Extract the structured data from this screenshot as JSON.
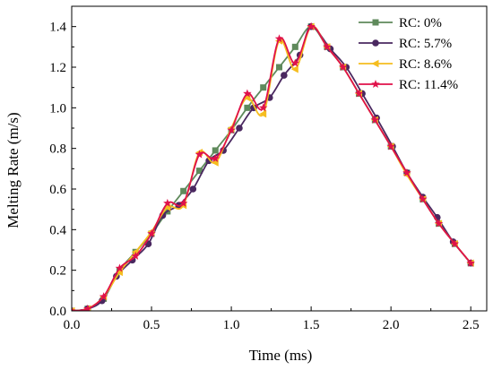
{
  "chart_data": {
    "type": "line",
    "title": "",
    "xlabel": "Time (ms)",
    "ylabel": "Melting Rate (m/s)",
    "xlim": [
      0,
      2.6
    ],
    "ylim": [
      0,
      1.5
    ],
    "xticks": [
      "0.0",
      "0.5",
      "1.0",
      "1.5",
      "2.0",
      "2.5"
    ],
    "yticks": [
      "0.0",
      "0.2",
      "0.4",
      "0.6",
      "0.8",
      "1.0",
      "1.2",
      "1.4"
    ],
    "grid": false,
    "legend_position": "top-right",
    "series": [
      {
        "name": "RC: 0%",
        "color": "#5f8a5c",
        "marker": "square",
        "x": [
          0.0,
          0.1,
          0.2,
          0.3,
          0.4,
          0.5,
          0.6,
          0.7,
          0.8,
          0.9,
          1.0,
          1.1,
          1.2,
          1.3,
          1.4,
          1.5,
          1.6,
          1.7,
          1.8,
          1.9,
          2.0,
          2.1,
          2.2,
          2.3,
          2.4,
          2.5
        ],
        "y": [
          0.0,
          0.01,
          0.06,
          0.2,
          0.29,
          0.38,
          0.49,
          0.59,
          0.69,
          0.79,
          0.89,
          1.0,
          1.1,
          1.2,
          1.3,
          1.4,
          1.3,
          1.2,
          1.07,
          0.94,
          0.81,
          0.68,
          0.55,
          0.43,
          0.33,
          0.235
        ]
      },
      {
        "name": "RC: 5.7%",
        "color": "#4a2860",
        "marker": "circle",
        "x": [
          0.0,
          0.1,
          0.19,
          0.28,
          0.38,
          0.48,
          0.57,
          0.67,
          0.76,
          0.86,
          0.95,
          1.05,
          1.14,
          1.24,
          1.33,
          1.43,
          1.5,
          1.62,
          1.72,
          1.82,
          1.91,
          2.01,
          2.1,
          2.2,
          2.29,
          2.39,
          2.5
        ],
        "y": [
          0.0,
          0.01,
          0.05,
          0.17,
          0.25,
          0.33,
          0.47,
          0.52,
          0.6,
          0.74,
          0.79,
          0.9,
          1.0,
          1.05,
          1.16,
          1.26,
          1.4,
          1.29,
          1.2,
          1.07,
          0.95,
          0.81,
          0.68,
          0.56,
          0.46,
          0.34,
          0.235
        ]
      },
      {
        "name": "RC: 8.6%",
        "color": "#f5bd1f",
        "marker": "triangle-left",
        "x": [
          0.0,
          0.1,
          0.2,
          0.3,
          0.4,
          0.5,
          0.6,
          0.7,
          0.8,
          0.9,
          1.0,
          1.1,
          1.2,
          1.3,
          1.4,
          1.5,
          1.6,
          1.7,
          1.8,
          1.9,
          2.0,
          2.1,
          2.2,
          2.3,
          2.4,
          2.5
        ],
        "y": [
          0.0,
          0.01,
          0.07,
          0.19,
          0.29,
          0.39,
          0.51,
          0.52,
          0.78,
          0.73,
          0.9,
          1.05,
          0.97,
          1.33,
          1.19,
          1.4,
          1.3,
          1.2,
          1.07,
          0.94,
          0.81,
          0.67,
          0.55,
          0.43,
          0.33,
          0.235
        ]
      },
      {
        "name": "RC: 11.4%",
        "color": "#e0114a",
        "marker": "star",
        "x": [
          0.0,
          0.1,
          0.2,
          0.3,
          0.4,
          0.5,
          0.6,
          0.7,
          0.8,
          0.9,
          1.0,
          1.1,
          1.2,
          1.3,
          1.4,
          1.5,
          1.6,
          1.7,
          1.8,
          1.9,
          2.0,
          2.1,
          2.2,
          2.3,
          2.4,
          2.5
        ],
        "y": [
          0.0,
          0.01,
          0.07,
          0.21,
          0.27,
          0.38,
          0.53,
          0.53,
          0.77,
          0.75,
          0.89,
          1.07,
          1.0,
          1.34,
          1.22,
          1.4,
          1.3,
          1.2,
          1.07,
          0.94,
          0.81,
          0.68,
          0.55,
          0.43,
          0.33,
          0.235
        ]
      }
    ]
  }
}
